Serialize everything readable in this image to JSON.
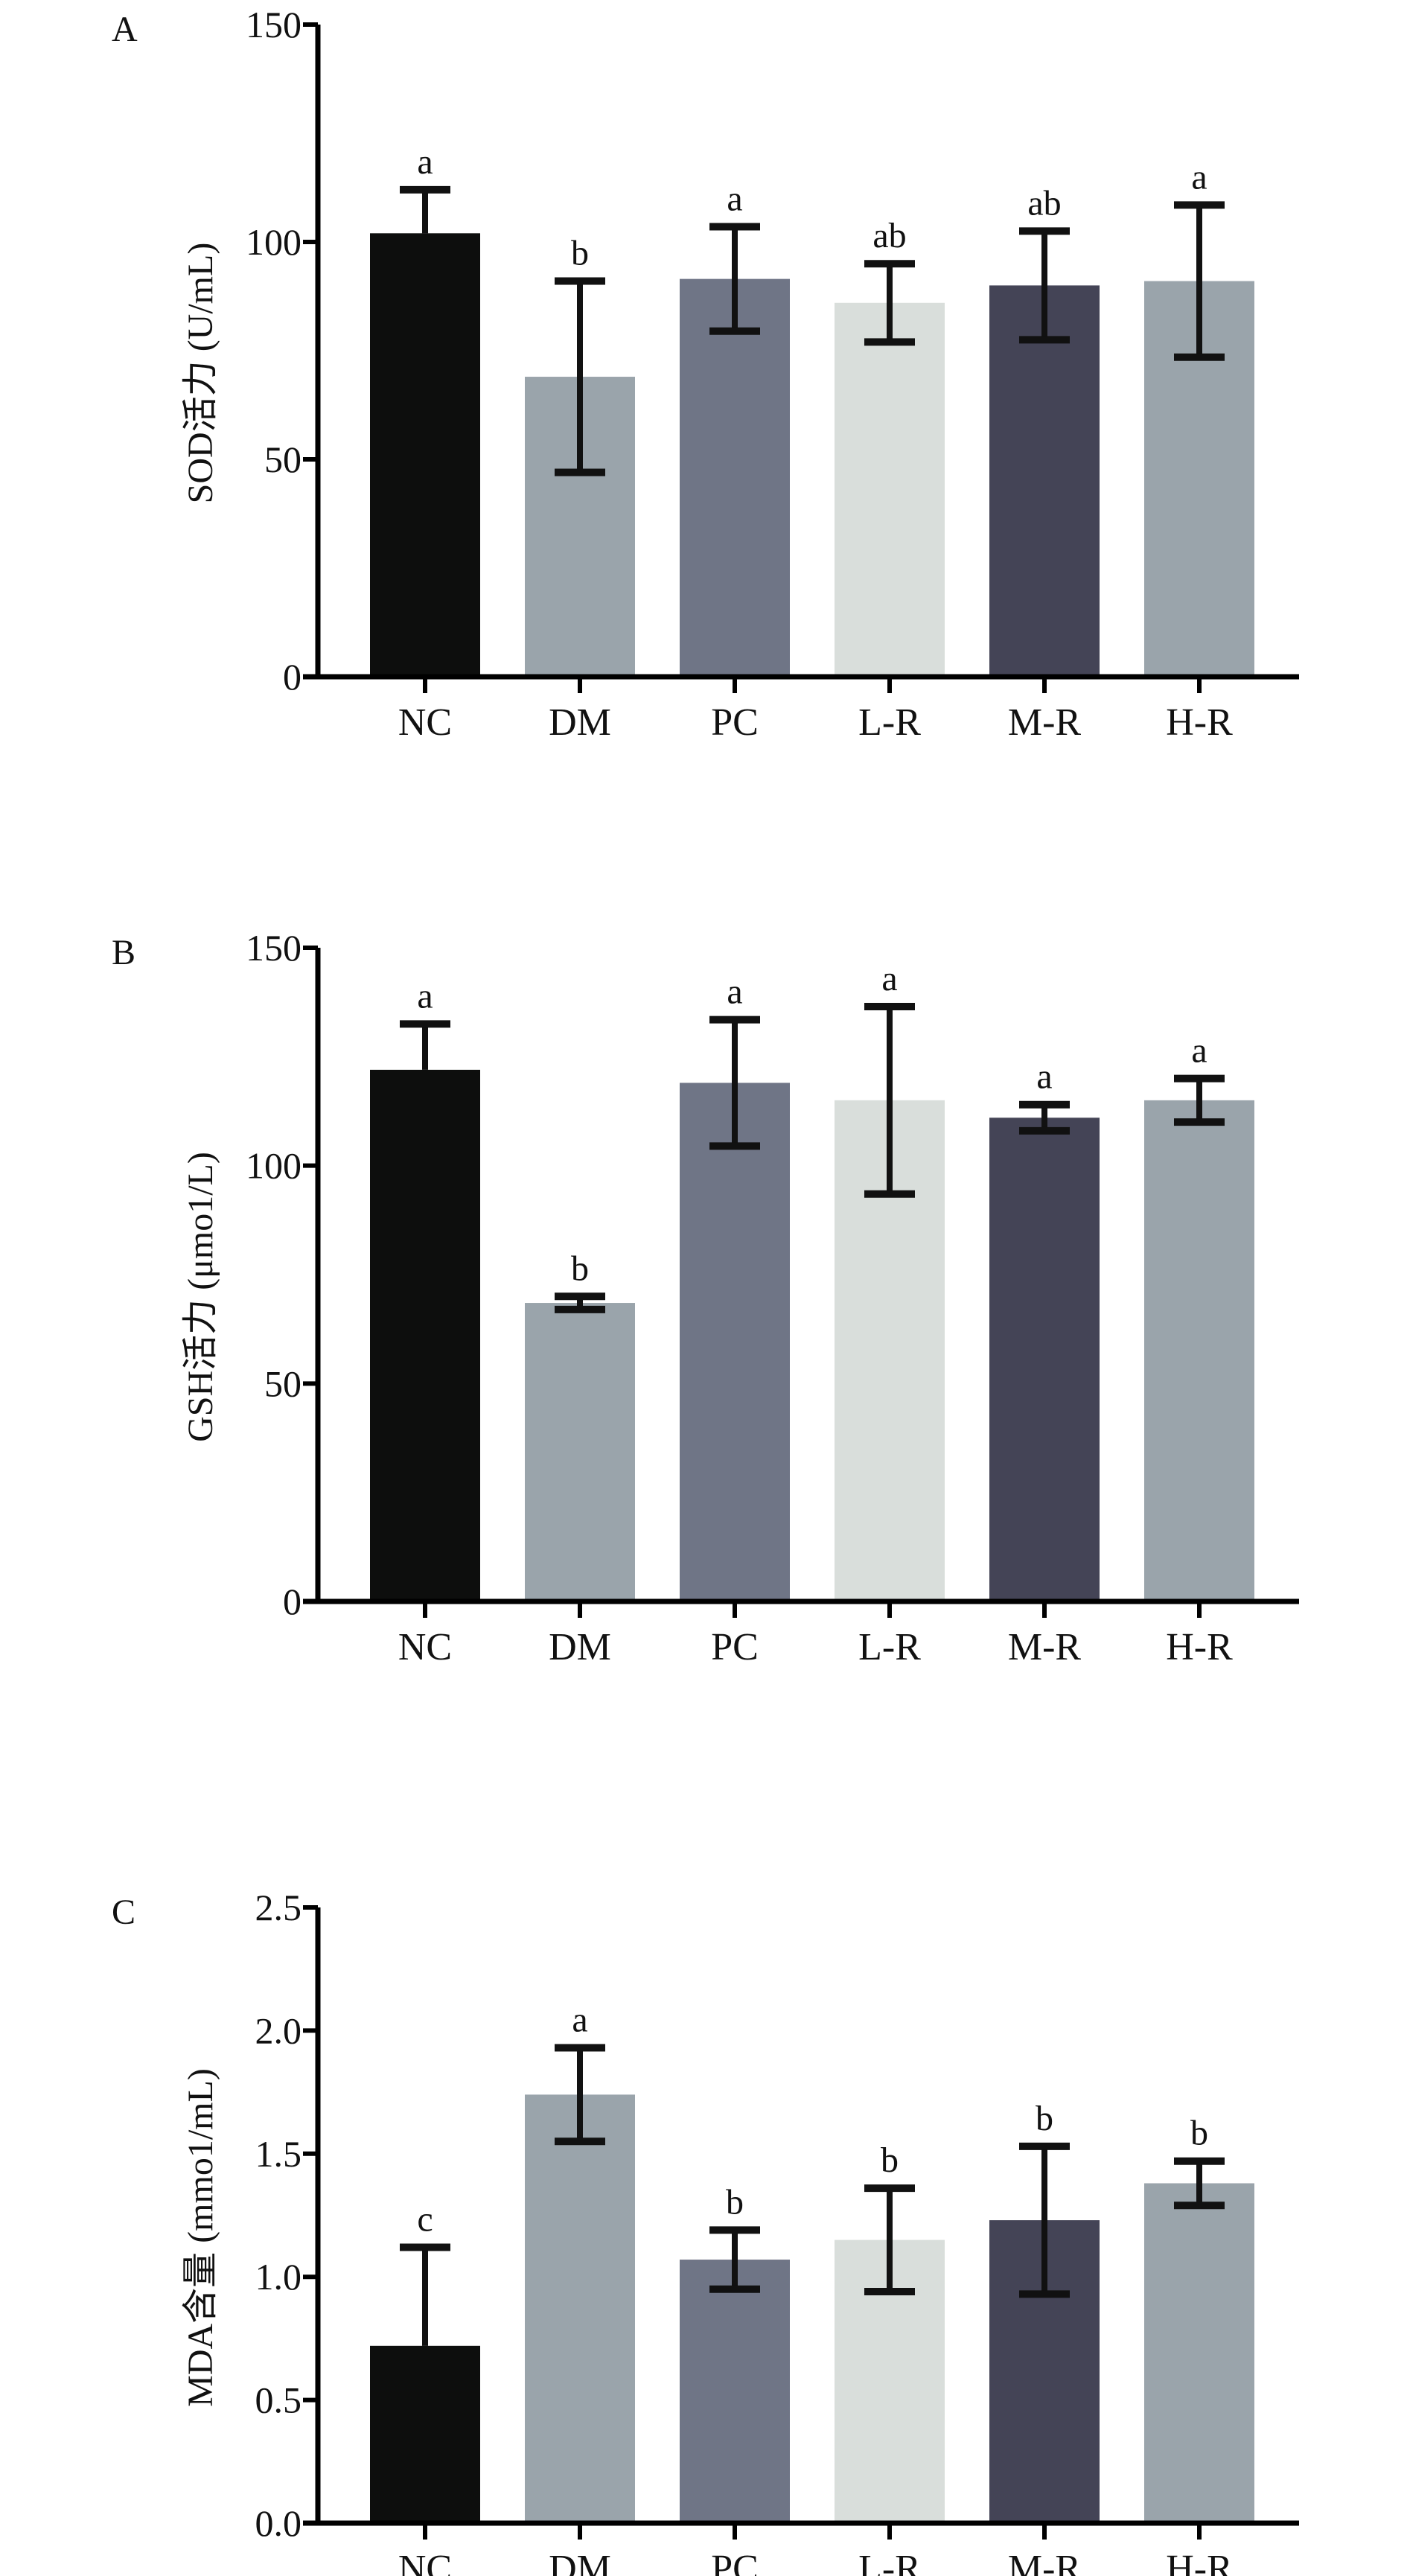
{
  "chart_data": [
    {
      "type": "bar",
      "panel_label": "A",
      "ylabel": "SOD活力 (U/mL)",
      "categories": [
        "NC",
        "DM",
        "PC",
        "L-R",
        "M-R",
        "H-R"
      ],
      "values": [
        102,
        69,
        91.5,
        86,
        90,
        91
      ],
      "error": [
        10,
        22,
        12,
        9,
        12.5,
        17.5
      ],
      "error_style": [
        "upper",
        "both",
        "both",
        "both",
        "both",
        "both"
      ],
      "significance": [
        "a",
        "b",
        "a",
        "ab",
        "ab",
        "a"
      ],
      "ylim": [
        0,
        150
      ],
      "yticks": [
        0,
        50,
        100,
        150
      ],
      "ytick_labels": [
        "0",
        "50",
        "100",
        "150"
      ]
    },
    {
      "type": "bar",
      "panel_label": "B",
      "ylabel": "GSH活力 (μmo1/L)",
      "categories": [
        "NC",
        "DM",
        "PC",
        "L-R",
        "M-R",
        "H-R"
      ],
      "values": [
        122,
        68.5,
        119,
        115,
        111,
        115
      ],
      "error": [
        10.5,
        1.5,
        14.5,
        21.5,
        3,
        5
      ],
      "error_style": [
        "upper",
        "both",
        "both",
        "both",
        "both",
        "both"
      ],
      "significance": [
        "a",
        "b",
        "a",
        "a",
        "a",
        "a"
      ],
      "ylim": [
        0,
        150
      ],
      "yticks": [
        0,
        50,
        100,
        150
      ],
      "ytick_labels": [
        "0",
        "50",
        "100",
        "150"
      ]
    },
    {
      "type": "bar",
      "panel_label": "C",
      "ylabel": "MDA含量 (mmo1/mL)",
      "categories": [
        "NC",
        "DM",
        "PC",
        "L-R",
        "M-R",
        "H-R"
      ],
      "values": [
        0.72,
        1.74,
        1.07,
        1.15,
        1.23,
        1.38
      ],
      "error": [
        0.4,
        0.19,
        0.12,
        0.21,
        0.3,
        0.09
      ],
      "error_style": [
        "upper",
        "both",
        "both",
        "both",
        "both",
        "both"
      ],
      "significance": [
        "c",
        "a",
        "b",
        "b",
        "b",
        "b"
      ],
      "ylim": [
        0,
        2.5
      ],
      "yticks": [
        0,
        0.5,
        1.0,
        1.5,
        2.0,
        2.5
      ],
      "ytick_labels": [
        "0.0",
        "0.5",
        "1.0",
        "1.5",
        "2.0",
        "2.5"
      ]
    }
  ],
  "colors": {
    "NC": "#0d0e0d",
    "DM": "#9aa4ab",
    "PC": "#6f7586",
    "L-R": "#d9dedb",
    "M-R": "#444456",
    "H-R": "#9aa4ab",
    "axis": "#000000"
  }
}
